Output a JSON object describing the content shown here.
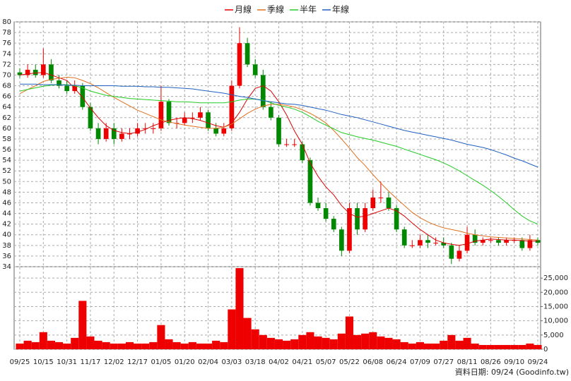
{
  "chart_data": {
    "type": "candlestick",
    "categories": [
      "09/25",
      null,
      null,
      "10/15",
      null,
      null,
      "10/31",
      null,
      null,
      "11/17",
      null,
      null,
      "12/02",
      null,
      null,
      "12/17",
      null,
      null,
      "01/05",
      null,
      null,
      "01/20",
      null,
      null,
      "02/04",
      null,
      null,
      "03/03",
      null,
      null,
      "03/18",
      null,
      null,
      "04/02",
      null,
      null,
      "04/21",
      null,
      null,
      "05/07",
      null,
      null,
      "05/22",
      null,
      null,
      "06/08",
      null,
      null,
      "06/24",
      null,
      null,
      "07/09",
      null,
      null,
      "07/27",
      null,
      null,
      "08/11",
      null,
      null,
      "08/26",
      null,
      null,
      "09/10",
      null,
      null,
      "09/24"
    ],
    "open": [
      70.5,
      70,
      71,
      70,
      72,
      69,
      68,
      67,
      68,
      64,
      60,
      58,
      60,
      58,
      59,
      59,
      60,
      60,
      60,
      65,
      61,
      61,
      62,
      62,
      63,
      60,
      59,
      60,
      68,
      76,
      72,
      70,
      64,
      62,
      57,
      57,
      57,
      54,
      46,
      45,
      43,
      41,
      37,
      45,
      41,
      45,
      47,
      47,
      45,
      41,
      38,
      38,
      39,
      38.5,
      38.5,
      38,
      35.5,
      37,
      40,
      38.5,
      39,
      39,
      38.5,
      39,
      39,
      37.5,
      39
    ],
    "high": [
      71.3,
      72,
      72,
      75,
      73,
      70,
      69,
      69,
      68.5,
      64.8,
      61,
      61,
      61,
      60,
      60,
      61,
      61,
      61,
      68,
      65.5,
      62,
      63,
      63,
      64,
      63.5,
      61,
      61,
      69,
      79,
      77,
      73,
      71,
      65,
      62.5,
      58,
      58,
      57.5,
      54.5,
      47,
      46,
      43.5,
      41.5,
      46,
      46,
      46,
      48.5,
      50,
      48,
      45.5,
      41.5,
      39,
      40,
      40,
      39.5,
      39.5,
      38.5,
      38,
      41.5,
      41,
      39.5,
      39.5,
      39.5,
      39.5,
      39.5,
      39.5,
      40,
      39.5
    ],
    "low": [
      69.5,
      69.5,
      69.5,
      69.5,
      68.5,
      67.5,
      66.5,
      66.5,
      63.5,
      59.5,
      57,
      57.5,
      57,
      57.5,
      58,
      58.5,
      59,
      59,
      59.5,
      60.5,
      60,
      60.5,
      61,
      61.5,
      59.5,
      58.5,
      58.5,
      59.5,
      67.5,
      71.5,
      69.5,
      63.5,
      61.5,
      56.5,
      56.5,
      56.5,
      53.5,
      45.5,
      44.5,
      42.5,
      40.5,
      36,
      36.5,
      40,
      40.5,
      44.5,
      46,
      44.5,
      40.5,
      37.5,
      37.5,
      37.5,
      37.5,
      38,
      37.5,
      34.5,
      35,
      36.5,
      38,
      38,
      38.5,
      38,
      38,
      38.5,
      37,
      37,
      38
    ],
    "close": [
      70,
      71,
      70,
      72,
      69,
      68,
      67,
      68,
      64,
      60,
      58,
      60,
      58,
      59,
      59,
      60,
      60,
      60,
      65,
      61,
      61,
      62,
      62,
      63,
      60,
      59,
      60,
      68,
      76,
      72,
      70,
      64,
      62,
      57,
      57,
      57,
      54,
      46,
      45,
      43,
      41,
      37,
      45,
      41,
      45,
      47,
      47,
      45,
      41,
      38,
      38,
      39,
      38.5,
      38.5,
      38,
      35.5,
      37,
      40,
      38.5,
      39,
      39,
      38.5,
      39,
      39,
      37.5,
      39,
      38.5
    ],
    "volume": [
      2000,
      3000,
      2500,
      6000,
      3000,
      2500,
      2000,
      4000,
      17000,
      4500,
      3000,
      2500,
      2000,
      2000,
      2500,
      2000,
      2000,
      2500,
      8500,
      3500,
      2500,
      2000,
      2500,
      2000,
      2000,
      3000,
      2500,
      14000,
      28500,
      11000,
      7000,
      5000,
      4000,
      3500,
      3000,
      3500,
      5000,
      6000,
      4500,
      4000,
      3500,
      5500,
      11500,
      5000,
      5500,
      6000,
      4500,
      4000,
      3500,
      2500,
      2000,
      2500,
      2000,
      2000,
      3000,
      5000,
      3000,
      4000,
      2000,
      1500,
      1500,
      1500,
      1500,
      1500,
      1500,
      2000,
      1500
    ],
    "series": [
      {
        "name": "月線",
        "color": "#dd0000",
        "values": [
          70.0,
          70.2,
          70.4,
          70.5,
          70.0,
          69.5,
          69.0,
          67.5,
          65.8,
          63.8,
          62.0,
          60.5,
          59.6,
          59.2,
          59.0,
          59.3,
          59.8,
          60.5,
          61.0,
          61.5,
          61.8,
          62.0,
          61.8,
          61.5,
          61.0,
          60.5,
          60.2,
          61.0,
          63.0,
          65.5,
          67.5,
          68.0,
          67.0,
          65.0,
          62.5,
          59.5,
          57.0,
          53.5,
          51.0,
          49.0,
          47.5,
          45.5,
          44.0,
          43.3,
          43.5,
          44.0,
          44.5,
          45.0,
          44.5,
          43.5,
          42.2,
          41.0,
          40.0,
          39.0,
          38.5,
          38.2,
          38.0,
          38.3,
          38.8,
          39.0,
          39.2,
          39.1,
          39.0,
          39.0,
          38.9,
          38.8,
          38.8
        ]
      },
      {
        "name": "季線",
        "color": "#e07020",
        "values": [
          66.5,
          67.3,
          68.0,
          68.8,
          69.2,
          69.4,
          69.6,
          69.5,
          69.0,
          68.4,
          67.6,
          66.7,
          65.8,
          65.0,
          64.2,
          63.4,
          62.8,
          62.2,
          61.6,
          61.2,
          60.9,
          60.6,
          60.4,
          60.2,
          60.0,
          60.0,
          60.2,
          60.8,
          61.8,
          62.8,
          63.6,
          64.2,
          64.5,
          64.5,
          64.3,
          64.0,
          63.5,
          62.8,
          62.0,
          61.0,
          59.6,
          58.0,
          56.3,
          54.5,
          53.0,
          51.3,
          49.7,
          48.2,
          46.8,
          45.5,
          44.2,
          43.2,
          42.4,
          41.8,
          41.3,
          41.0,
          40.7,
          40.3,
          40.0,
          39.8,
          39.6,
          39.5,
          39.4,
          39.3,
          39.2,
          39.1,
          39.0
        ]
      },
      {
        "name": "半年",
        "color": "#22cc22",
        "values": [
          67.0,
          67.3,
          67.6,
          67.9,
          68.1,
          68.2,
          68.2,
          68.0,
          67.6,
          67.0,
          66.6,
          66.2,
          66.0,
          65.8,
          65.6,
          65.5,
          65.4,
          65.3,
          65.2,
          65.1,
          65.0,
          65.0,
          64.9,
          64.8,
          64.8,
          64.8,
          64.8,
          65.0,
          65.3,
          65.5,
          65.5,
          65.3,
          64.8,
          64.3,
          64.0,
          63.6,
          63.0,
          62.2,
          61.3,
          60.6,
          59.9,
          59.2,
          58.8,
          58.4,
          58.1,
          57.8,
          57.4,
          57.0,
          56.6,
          56.1,
          55.6,
          55.1,
          54.6,
          54.1,
          53.5,
          52.8,
          52.0,
          51.1,
          50.2,
          49.3,
          48.3,
          47.2,
          46.0,
          44.7,
          43.5,
          42.6,
          42.0
        ]
      },
      {
        "name": "年線",
        "color": "#2060c0",
        "values": [
          68.3,
          68.3,
          68.3,
          68.2,
          68.2,
          68.2,
          68.1,
          68.1,
          68.0,
          68.0,
          68.0,
          68.0,
          68.0,
          67.9,
          67.9,
          67.9,
          67.8,
          67.8,
          67.7,
          67.7,
          67.6,
          67.5,
          67.4,
          67.2,
          67.0,
          66.8,
          66.6,
          66.3,
          66.0,
          65.8,
          65.5,
          65.2,
          65.0,
          64.8,
          64.6,
          64.5,
          64.3,
          64.0,
          63.7,
          63.4,
          63.0,
          62.6,
          62.3,
          62.0,
          61.6,
          61.2,
          60.8,
          60.4,
          60.0,
          59.6,
          59.3,
          59.0,
          58.7,
          58.4,
          58.1,
          57.8,
          57.4,
          57.0,
          56.7,
          56.4,
          56.0,
          55.5,
          55.0,
          54.4,
          53.9,
          53.3,
          52.7
        ]
      }
    ],
    "up_color": "#ee0000",
    "down_color": "#008800",
    "volume_color": "#ee0000",
    "ylim": [
      34,
      80
    ],
    "yticks": [
      34,
      36,
      38,
      40,
      42,
      44,
      46,
      48,
      50,
      52,
      54,
      56,
      58,
      60,
      62,
      64,
      66,
      68,
      70,
      72,
      74,
      76,
      78,
      80
    ],
    "y2lim": [
      0,
      29000
    ],
    "y2ticks": [
      0,
      {
        "value": 5000,
        "label": "5,000"
      },
      {
        "value": 10000,
        "label": "10,000"
      },
      {
        "value": 15000,
        "label": "15,000"
      },
      {
        "value": 20000,
        "label": "20,000"
      },
      {
        "value": 25000,
        "label": "25,000"
      }
    ],
    "grid": true,
    "legend": "top",
    "footnote": "資料日期: 09/24 (Goodinfo.tw)"
  }
}
